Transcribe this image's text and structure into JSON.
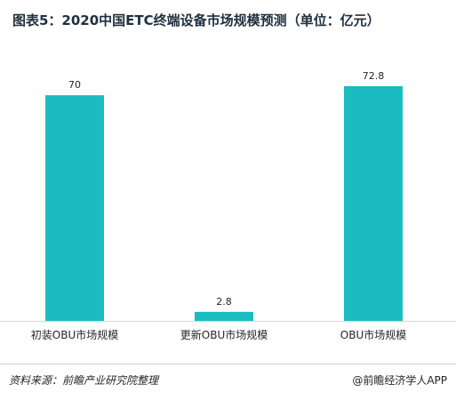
{
  "title": "图表5：2020中国ETC终端设备市场规模预测（单位：亿元）",
  "footer": {
    "source": "资料来源：前瞻产业研究院整理",
    "credit": "@前瞻经济学人APP"
  },
  "colors": {
    "bar": "#1bbcc0",
    "baseline": "#d9d9d9",
    "text": "#262626"
  },
  "chart_data": {
    "type": "bar",
    "categories": [
      "初装OBU市场规模",
      "更新OBU市场规模",
      "OBU市场规模"
    ],
    "values": [
      70,
      2.8,
      72.8
    ],
    "data_labels": [
      "70",
      "2.8",
      "72.8"
    ],
    "title": "图表5：2020中国ETC终端设备市场规模预测（单位：亿元）",
    "xlabel": "",
    "ylabel": "",
    "ylim": [
      0,
      72.8
    ],
    "grid": false,
    "legend": "none"
  }
}
